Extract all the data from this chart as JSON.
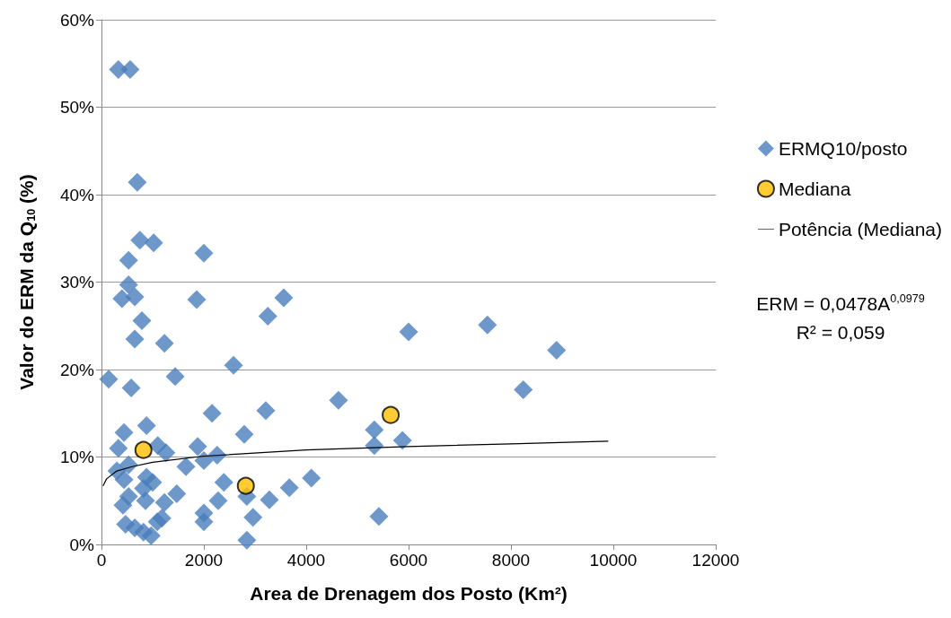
{
  "chart_data": {
    "type": "scatter",
    "xlabel": "Area de Drenagem dos Posto (Km²)",
    "ylabel": "Valor do ERM da Q$_{10}$ (%)",
    "xlim": [
      0,
      12000
    ],
    "xticks": [
      0,
      2000,
      4000,
      6000,
      8000,
      10000,
      12000
    ],
    "ylim": [
      0,
      60
    ],
    "yticks": [
      {
        "value": 0,
        "label": "0%"
      },
      {
        "value": 10,
        "label": "10%"
      },
      {
        "value": 20,
        "label": "20%"
      },
      {
        "value": 30,
        "label": "30%"
      },
      {
        "value": 40,
        "label": "40%"
      },
      {
        "value": 50,
        "label": "50%"
      },
      {
        "value": 60,
        "label": "60%"
      }
    ],
    "grid": "y",
    "legend": "right",
    "annotations": [
      "ERM = 0,0478A$^{0,0979}$",
      "R² = 0,059"
    ],
    "series": [
      {
        "name": "ERMQ10/posto",
        "marker": "diamond",
        "color": "#4a7ebb",
        "x": [
          330,
          560,
          700,
          750,
          1020,
          2000,
          530,
          530,
          400,
          650,
          1860,
          3560,
          3250,
          790,
          650,
          1230,
          6000,
          7540,
          8890,
          8240,
          4630,
          5330,
          5330,
          5880,
          5420,
          140,
          580,
          1440,
          2580,
          2160,
          3210,
          880,
          440,
          330,
          2790,
          1880,
          1100,
          1260,
          2260,
          2000,
          1650,
          530,
          300,
          440,
          880,
          1000,
          2390,
          530,
          420,
          820,
          860,
          1470,
          1230,
          2280,
          2840,
          3280,
          3670,
          4100,
          2000,
          2000,
          2960,
          2840,
          470,
          650,
          820,
          970,
          1090,
          1180
        ],
        "values": [
          54.3,
          54.3,
          41.4,
          34.8,
          34.5,
          33.3,
          32.5,
          29.7,
          28.1,
          28.3,
          28.0,
          28.2,
          26.1,
          25.6,
          23.5,
          23.0,
          24.3,
          25.1,
          22.2,
          17.7,
          16.5,
          13.1,
          11.3,
          11.9,
          3.2,
          18.9,
          17.9,
          19.2,
          20.5,
          15.0,
          15.3,
          13.6,
          12.8,
          11.0,
          12.6,
          11.2,
          11.3,
          10.5,
          10.2,
          9.6,
          8.9,
          9.1,
          8.4,
          7.4,
          7.7,
          7.1,
          7.1,
          5.5,
          4.5,
          6.4,
          5.0,
          5.8,
          4.8,
          5.0,
          5.5,
          5.1,
          6.5,
          7.6,
          3.6,
          2.6,
          3.1,
          0.5,
          2.3,
          1.9,
          1.4,
          1.0,
          2.6,
          3.0
        ]
      },
      {
        "name": "Mediana",
        "marker": "circle",
        "color": "#ffc000",
        "x": [
          820,
          2820,
          5650
        ],
        "values": [
          10.8,
          6.7,
          14.8
        ]
      },
      {
        "name": "Potência (Mediana)",
        "type": "line",
        "marker": "none",
        "line_style": "solid",
        "color": "#000000",
        "x": [
          30,
          100,
          300,
          600,
          1000,
          2000,
          4000,
          6000,
          8000,
          9900
        ],
        "values": [
          6.7,
          7.5,
          8.4,
          8.9,
          9.4,
          10.1,
          10.8,
          11.2,
          11.5,
          11.8
        ]
      }
    ]
  }
}
